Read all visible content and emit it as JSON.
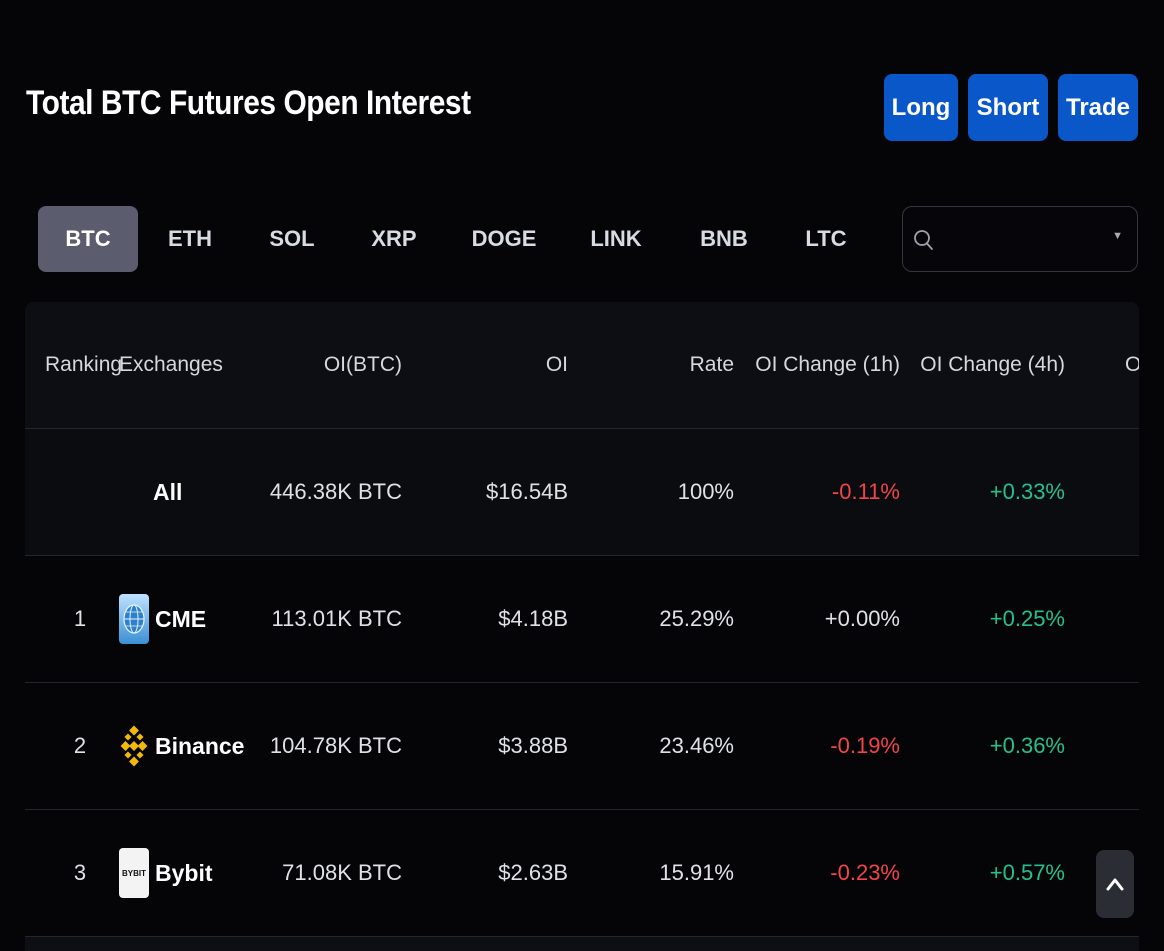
{
  "page_title": "Total BTC Futures Open Interest",
  "actions": {
    "long": "Long",
    "short": "Short",
    "trade": "Trade",
    "accent": "#0a57c9"
  },
  "coin_tabs": [
    {
      "label": "BTC",
      "active": true
    },
    {
      "label": "ETH",
      "active": false
    },
    {
      "label": "SOL",
      "active": false
    },
    {
      "label": "XRP",
      "active": false
    },
    {
      "label": "DOGE",
      "active": false
    },
    {
      "label": "LINK",
      "active": false
    },
    {
      "label": "BNB",
      "active": false
    },
    {
      "label": "LTC",
      "active": false
    }
  ],
  "search": {
    "placeholder": "",
    "icon": "search-icon"
  },
  "table": {
    "headers": {
      "ranking": "Ranking",
      "exchanges": "Exchanges",
      "oi_btc": "OI(BTC)",
      "oi": "OI",
      "rate": "Rate",
      "oi_change_1h": "OI Change (1h)",
      "oi_change_4h": "OI Change (4h)",
      "more": "OI"
    },
    "all_row": {
      "label": "All",
      "oi_btc": "446.38K BTC",
      "oi": "$16.54B",
      "rate": "100%",
      "oi_change_1h": "-0.11%",
      "oi_change_4h": "+0.33%"
    },
    "rows": [
      {
        "rank": "1",
        "exchange": "CME",
        "logo": "cme-logo",
        "oi_btc": "113.01K BTC",
        "oi": "$4.18B",
        "rate": "25.29%",
        "oi_change_1h": "+0.00%",
        "oi_change_4h": "+0.25%"
      },
      {
        "rank": "2",
        "exchange": "Binance",
        "logo": "binance-logo",
        "oi_btc": "104.78K BTC",
        "oi": "$3.88B",
        "rate": "23.46%",
        "oi_change_1h": "-0.19%",
        "oi_change_4h": "+0.36%"
      },
      {
        "rank": "3",
        "exchange": "Bybit",
        "logo": "bybit-logo",
        "oi_btc": "71.08K BTC",
        "oi": "$2.63B",
        "rate": "15.91%",
        "oi_change_1h": "-0.23%",
        "oi_change_4h": "+0.57%"
      }
    ]
  },
  "bybit_logo_text": "BYBIT",
  "scroll_top_icon": "chevron-up-icon",
  "colors": {
    "negative": "#f0454a",
    "positive": "#27c08a"
  }
}
